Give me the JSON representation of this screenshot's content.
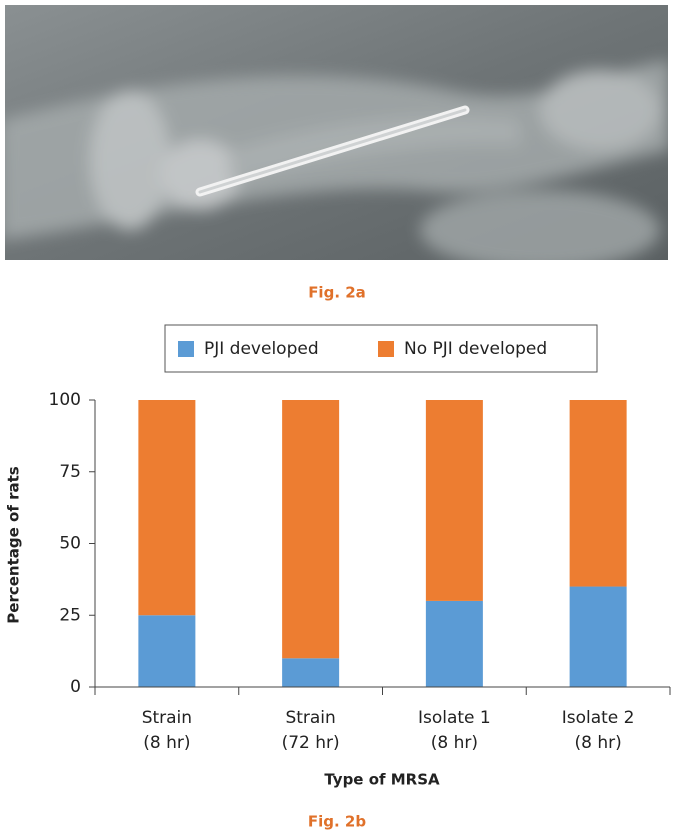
{
  "figure_captions": [
    "Fig. 2a",
    "Fig. 2b"
  ],
  "chart_data": {
    "type": "stacked_bar",
    "categories": [
      [
        "Strain",
        "(8 hr)"
      ],
      [
        "Strain",
        "(72 hr)"
      ],
      [
        "Isolate 1",
        "(8 hr)"
      ],
      [
        "Isolate 2",
        "(8 hr)"
      ]
    ],
    "series": [
      {
        "name": "PJI developed",
        "color": "#5b9bd5",
        "values": [
          25,
          10,
          30,
          35
        ]
      },
      {
        "name": "No PJI developed",
        "color": "#ed7d31",
        "values": [
          75,
          90,
          70,
          65
        ]
      }
    ],
    "ylim": [
      0,
      100
    ],
    "yticks": [
      0,
      25,
      50,
      75,
      100
    ],
    "y_label": "Percentage of rats",
    "x_label": "Type of MRSA",
    "legend": "top",
    "grid": false
  }
}
